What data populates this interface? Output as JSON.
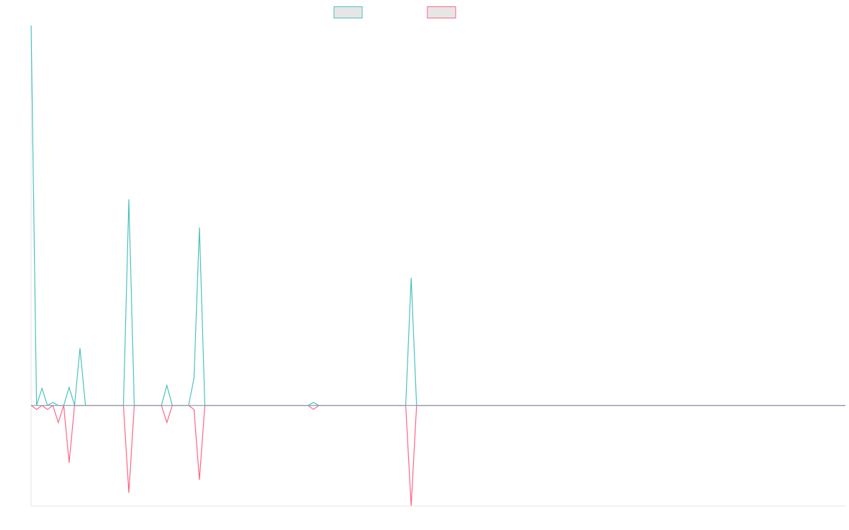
{
  "chart_data": {
    "type": "line",
    "title": "",
    "xlabel": "",
    "ylabel": "",
    "x_count": 151,
    "ylim": [
      -1.0,
      3.78
    ],
    "grid": false,
    "legend": "top-center",
    "colors": {
      "series_1": "#4bc0c0",
      "series_2": "#ff6384",
      "legend_fill": "#e6e6e6",
      "axis": "#e5e5e5",
      "baseline": "#8aa0b4"
    },
    "series": [
      {
        "name": "",
        "points": [
          {
            "x": 0,
            "y": 3.78
          },
          {
            "x": 1,
            "y": 0.0
          },
          {
            "x": 2,
            "y": 0.17
          },
          {
            "x": 3,
            "y": 0.0
          },
          {
            "x": 4,
            "y": 0.03
          },
          {
            "x": 5,
            "y": 0.0
          },
          {
            "x": 6,
            "y": 0.0
          },
          {
            "x": 7,
            "y": 0.18
          },
          {
            "x": 8,
            "y": 0.0
          },
          {
            "x": 9,
            "y": 0.57
          },
          {
            "x": 10,
            "y": 0.0
          },
          {
            "x": 17,
            "y": 0.0
          },
          {
            "x": 18,
            "y": 2.05
          },
          {
            "x": 19,
            "y": 0.0
          },
          {
            "x": 24,
            "y": 0.0
          },
          {
            "x": 25,
            "y": 0.2
          },
          {
            "x": 26,
            "y": 0.0
          },
          {
            "x": 29,
            "y": 0.0
          },
          {
            "x": 30,
            "y": 0.27
          },
          {
            "x": 31,
            "y": 1.77
          },
          {
            "x": 32,
            "y": 0.0
          },
          {
            "x": 51,
            "y": 0.0
          },
          {
            "x": 52,
            "y": 0.03
          },
          {
            "x": 53,
            "y": 0.0
          },
          {
            "x": 69,
            "y": 0.0
          },
          {
            "x": 70,
            "y": 1.27
          },
          {
            "x": 71,
            "y": 0.0
          },
          {
            "x": 150,
            "y": 0.0
          }
        ]
      },
      {
        "name": "",
        "points": [
          {
            "x": 0,
            "y": 0.0
          },
          {
            "x": 1,
            "y": -0.04
          },
          {
            "x": 2,
            "y": 0.0
          },
          {
            "x": 3,
            "y": -0.04
          },
          {
            "x": 4,
            "y": 0.0
          },
          {
            "x": 5,
            "y": -0.17
          },
          {
            "x": 6,
            "y": 0.0
          },
          {
            "x": 7,
            "y": -0.57
          },
          {
            "x": 8,
            "y": 0.0
          },
          {
            "x": 17,
            "y": 0.0
          },
          {
            "x": 18,
            "y": -0.87
          },
          {
            "x": 19,
            "y": 0.0
          },
          {
            "x": 24,
            "y": 0.0
          },
          {
            "x": 25,
            "y": -0.17
          },
          {
            "x": 26,
            "y": 0.0
          },
          {
            "x": 29,
            "y": 0.0
          },
          {
            "x": 30,
            "y": -0.04
          },
          {
            "x": 31,
            "y": -0.74
          },
          {
            "x": 32,
            "y": 0.0
          },
          {
            "x": 51,
            "y": 0.0
          },
          {
            "x": 52,
            "y": -0.04
          },
          {
            "x": 53,
            "y": 0.0
          },
          {
            "x": 69,
            "y": 0.0
          },
          {
            "x": 70,
            "y": -1.0
          },
          {
            "x": 71,
            "y": 0.0
          },
          {
            "x": 150,
            "y": 0.0
          }
        ]
      }
    ]
  }
}
